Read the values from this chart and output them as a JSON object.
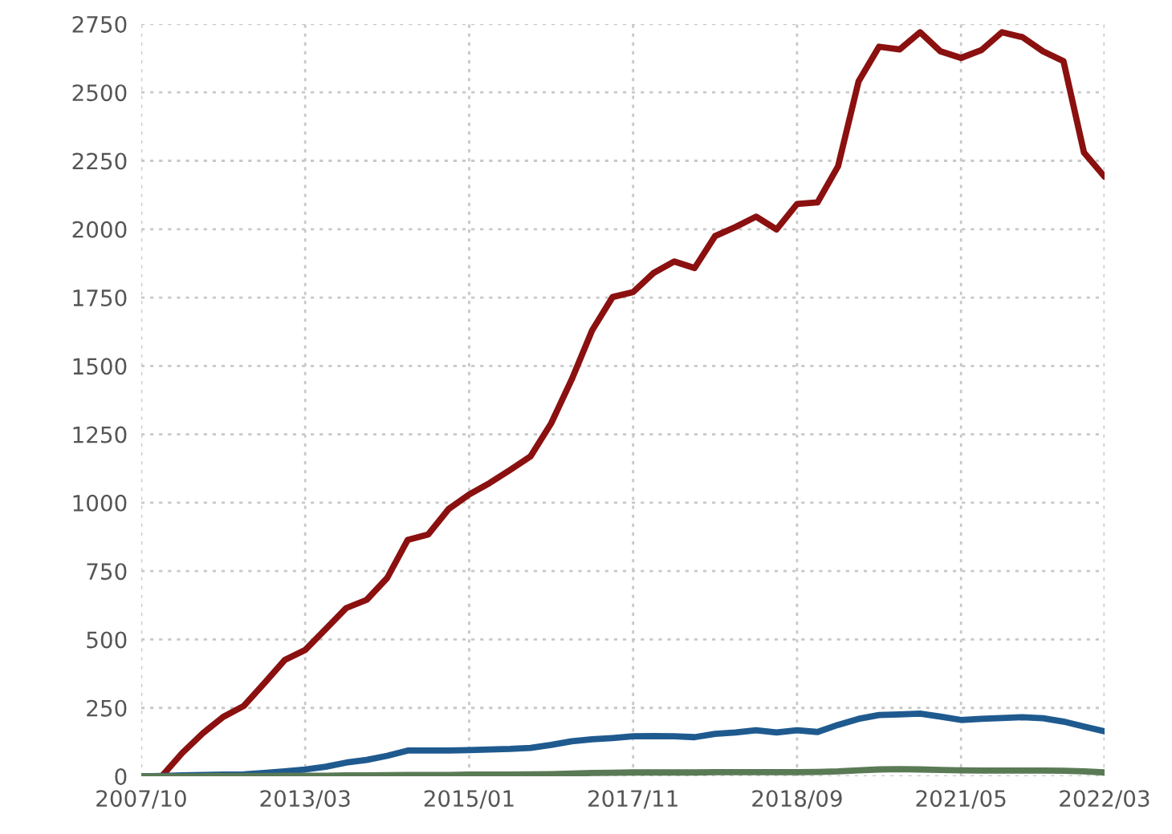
{
  "chart_data": {
    "type": "line",
    "categories": [
      "2007/10",
      null,
      null,
      null,
      null,
      null,
      null,
      null,
      "2013/03",
      null,
      null,
      null,
      null,
      null,
      null,
      null,
      "2015/01",
      null,
      null,
      null,
      null,
      null,
      null,
      null,
      "2017/11",
      null,
      null,
      null,
      null,
      null,
      null,
      null,
      "2018/09",
      null,
      null,
      null,
      null,
      null,
      null,
      null,
      "2021/05",
      null,
      null,
      null,
      null,
      null,
      null,
      "2022/03"
    ],
    "series": [
      {
        "color": "#8b1010",
        "values": [
          0,
          0,
          85,
          157,
          217,
          257,
          340,
          425,
          462,
          538,
          615,
          645,
          725,
          864,
          884,
          977,
          1030,
          1072,
          1120,
          1170,
          1290,
          1450,
          1630,
          1752,
          1770,
          1840,
          1882,
          1858,
          1975,
          2008,
          2046,
          1999,
          2092,
          2098,
          2230,
          2540,
          2667,
          2657,
          2720,
          2650,
          2626,
          2655,
          2720,
          2702,
          2650,
          2614,
          2280,
          2192
        ]
      },
      {
        "color": "#1f5a8f",
        "values": [
          0,
          1,
          3,
          5,
          6,
          7,
          12,
          18,
          25,
          35,
          50,
          60,
          75,
          94,
          94,
          94,
          96,
          98,
          100,
          104,
          115,
          128,
          135,
          140,
          146,
          147,
          146,
          143,
          155,
          160,
          168,
          160,
          168,
          162,
          188,
          210,
          224,
          226,
          229,
          218,
          206,
          210,
          213,
          216,
          212,
          200,
          182,
          164
        ]
      },
      {
        "color": "#5a7a55",
        "values": [
          0,
          0,
          0,
          0,
          1,
          1,
          1,
          2,
          2,
          2,
          3,
          3,
          4,
          5,
          5,
          5,
          6,
          6,
          6,
          7,
          8,
          10,
          12,
          13,
          14,
          14,
          14,
          14,
          15,
          15,
          15,
          15,
          15,
          16,
          18,
          22,
          25,
          26,
          25,
          23,
          22,
          21,
          21,
          21,
          21,
          20,
          18,
          14
        ]
      }
    ],
    "ylim": [
      0,
      2750
    ],
    "yticks": [
      0,
      250,
      500,
      750,
      1000,
      1250,
      1500,
      1750,
      2000,
      2250,
      2500,
      2750
    ],
    "grid": true,
    "line_style": "solid",
    "marker": "none"
  }
}
